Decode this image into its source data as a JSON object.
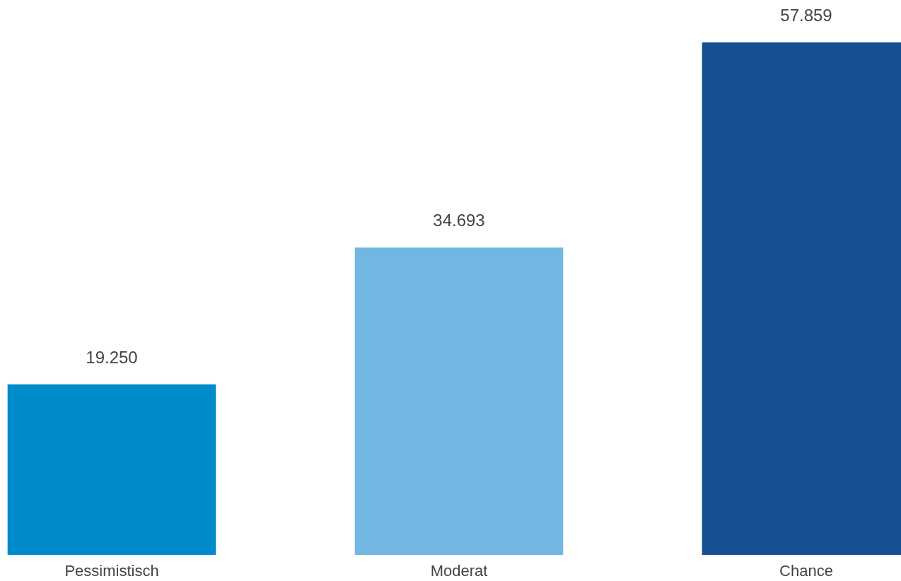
{
  "chart_data": {
    "type": "bar",
    "categories": [
      "Pessimistisch",
      "Moderat",
      "Chance"
    ],
    "values": [
      19250,
      34693,
      57859
    ],
    "colors": [
      "#008bca",
      "#72b7e1",
      "#155190"
    ],
    "value_labels": [
      "19.250",
      "34.693",
      "57.859"
    ]
  }
}
